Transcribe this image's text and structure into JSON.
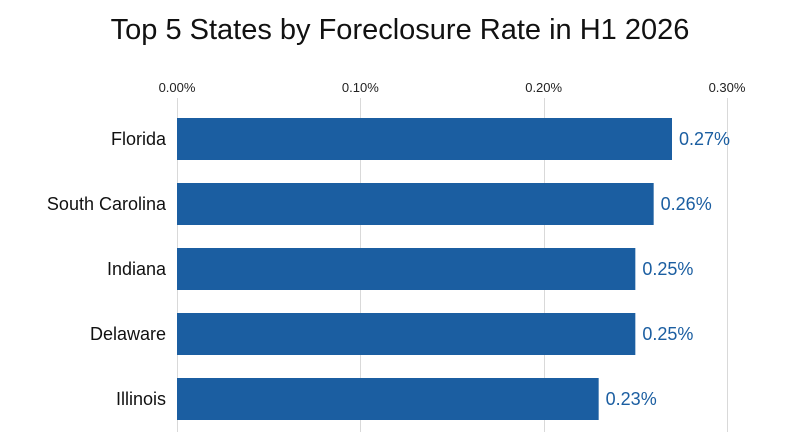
{
  "chart_data": {
    "type": "bar",
    "orientation": "horizontal",
    "title": "Top 5 States by Foreclosure Rate in H1 2026",
    "xlabel": "",
    "ylabel": "",
    "categories": [
      "Florida",
      "South Carolina",
      "Indiana",
      "Delaware",
      "Illinois"
    ],
    "values": [
      0.27,
      0.26,
      0.25,
      0.25,
      0.23
    ],
    "value_labels": [
      "0.27%",
      "0.26%",
      "0.25%",
      "0.25%",
      "0.23%"
    ],
    "xlim": [
      0,
      0.3
    ],
    "x_ticks": [
      0,
      0.1,
      0.2,
      0.3
    ],
    "x_tick_labels": [
      "0.00%",
      "0.10%",
      "0.20%",
      "0.30%"
    ],
    "x_axis_position": "top",
    "grid": true,
    "legend": "none",
    "bar_color": "#1b5ea1",
    "label_color": "#1b5ea1",
    "grid_color": "#d9d9d9"
  }
}
